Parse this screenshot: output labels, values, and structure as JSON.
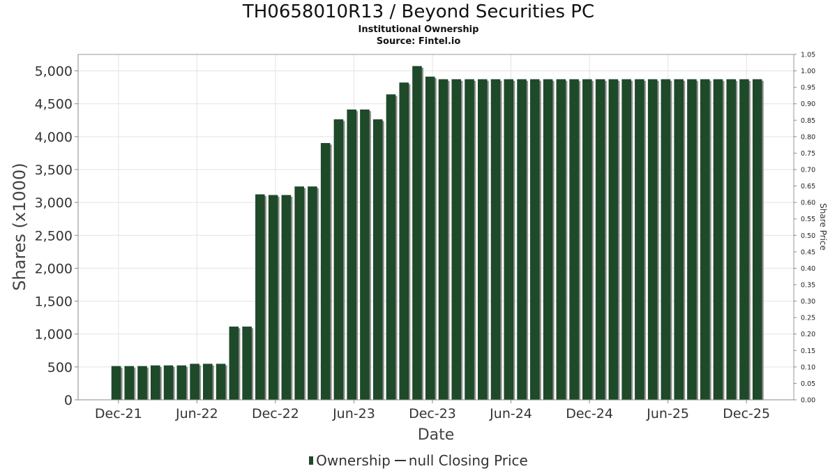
{
  "chart_data": {
    "type": "bar",
    "title": "TH0658010R13 / Beyond Securities PC",
    "subtitle_1": "Institutional Ownership",
    "subtitle_2": "Source: Fintel.io",
    "xlabel": "Date",
    "ylabel": "Shares (x1000)",
    "y2label": "Share Price",
    "ylim": [
      0,
      5250
    ],
    "y2lim": [
      0,
      1.05
    ],
    "yticks": [
      "0",
      "500",
      "1,000",
      "1,500",
      "2,000",
      "2,500",
      "3,000",
      "3,500",
      "4,000",
      "4,500",
      "5,000"
    ],
    "y2ticks": [
      "0.00",
      "0.05",
      "0.10",
      "0.15",
      "0.20",
      "0.25",
      "0.30",
      "0.35",
      "0.40",
      "0.45",
      "0.50",
      "0.55",
      "0.60",
      "0.65",
      "0.70",
      "0.75",
      "0.80",
      "0.85",
      "0.90",
      "0.95",
      "1.00",
      "1.05"
    ],
    "xticks": [
      "Dec-21",
      "Jun-22",
      "Dec-22",
      "Jun-23",
      "Dec-23",
      "Jun-24",
      "Dec-24",
      "Jun-25",
      "Dec-25"
    ],
    "series": [
      {
        "name": "Ownership",
        "color": "#1e4a2a",
        "values": [
          510,
          510,
          510,
          520,
          520,
          520,
          545,
          545,
          545,
          1110,
          1110,
          3120,
          3110,
          3110,
          3240,
          3240,
          3900,
          4260,
          4410,
          4410,
          4260,
          4640,
          4820,
          5070,
          4910,
          4870,
          4870,
          4870,
          4870,
          4870,
          4870,
          4870,
          4870,
          4870,
          4870,
          4870,
          4870,
          4870,
          4870,
          4870,
          4870,
          4870,
          4870,
          4870,
          4870,
          4870,
          4870,
          4870,
          4870,
          4870
        ]
      }
    ],
    "legend": {
      "ownership": "Ownership",
      "price": "null Closing Price"
    }
  }
}
